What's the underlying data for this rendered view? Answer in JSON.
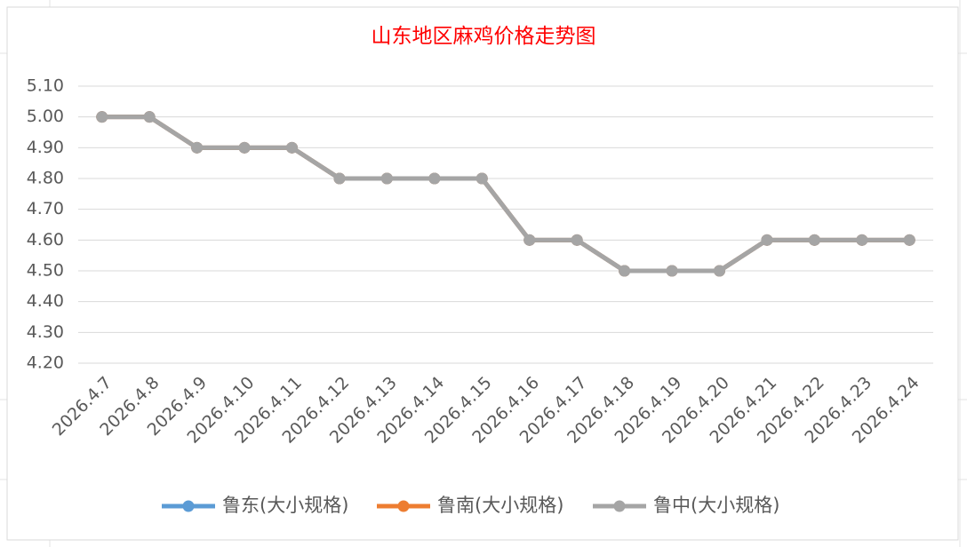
{
  "chart_data": {
    "type": "line",
    "title": "山东地区麻鸡价格走势图",
    "categories": [
      "2026.4.7",
      "2026.4.8",
      "2026.4.9",
      "2026.4.10",
      "2026.4.11",
      "2026.4.12",
      "2026.4.13",
      "2026.4.14",
      "2026.4.15",
      "2026.4.16",
      "2026.4.17",
      "2026.4.18",
      "2026.4.19",
      "2026.4.20",
      "2026.4.21",
      "2026.4.22",
      "2026.4.23",
      "2026.4.24"
    ],
    "series": [
      {
        "name": "鲁东(大小规格)",
        "color": "#5b9bd5",
        "values": [
          5.0,
          5.0,
          4.9,
          4.9,
          4.9,
          4.8,
          4.8,
          4.8,
          4.8,
          4.6,
          4.6,
          4.5,
          4.5,
          4.5,
          4.6,
          4.6,
          4.6,
          4.6
        ]
      },
      {
        "name": "鲁南(大小规格)",
        "color": "#ed7d31",
        "values": [
          5.0,
          5.0,
          4.9,
          4.9,
          4.9,
          4.8,
          4.8,
          4.8,
          4.8,
          4.6,
          4.6,
          4.5,
          4.5,
          4.5,
          4.6,
          4.6,
          4.6,
          4.6
        ]
      },
      {
        "name": "鲁中(大小规格)",
        "color": "#a5a5a5",
        "values": [
          5.0,
          5.0,
          4.9,
          4.9,
          4.9,
          4.8,
          4.8,
          4.8,
          4.8,
          4.6,
          4.6,
          4.5,
          4.5,
          4.5,
          4.6,
          4.6,
          4.6,
          4.6
        ]
      }
    ],
    "ylim": [
      4.2,
      5.1
    ],
    "yticks": [
      {
        "value": 4.2,
        "label": "4.20"
      },
      {
        "value": 4.3,
        "label": "4.30"
      },
      {
        "value": 4.4,
        "label": "4.40"
      },
      {
        "value": 4.5,
        "label": "4.50"
      },
      {
        "value": 4.6,
        "label": "4.60"
      },
      {
        "value": 4.7,
        "label": "4.70"
      },
      {
        "value": 4.8,
        "label": "4.80"
      },
      {
        "value": 4.9,
        "label": "4.90"
      },
      {
        "value": 5.0,
        "label": "5.00"
      },
      {
        "value": 5.1,
        "label": "5.10"
      }
    ],
    "grid": true,
    "legend": "bottom",
    "title_color": "#ff0000"
  }
}
